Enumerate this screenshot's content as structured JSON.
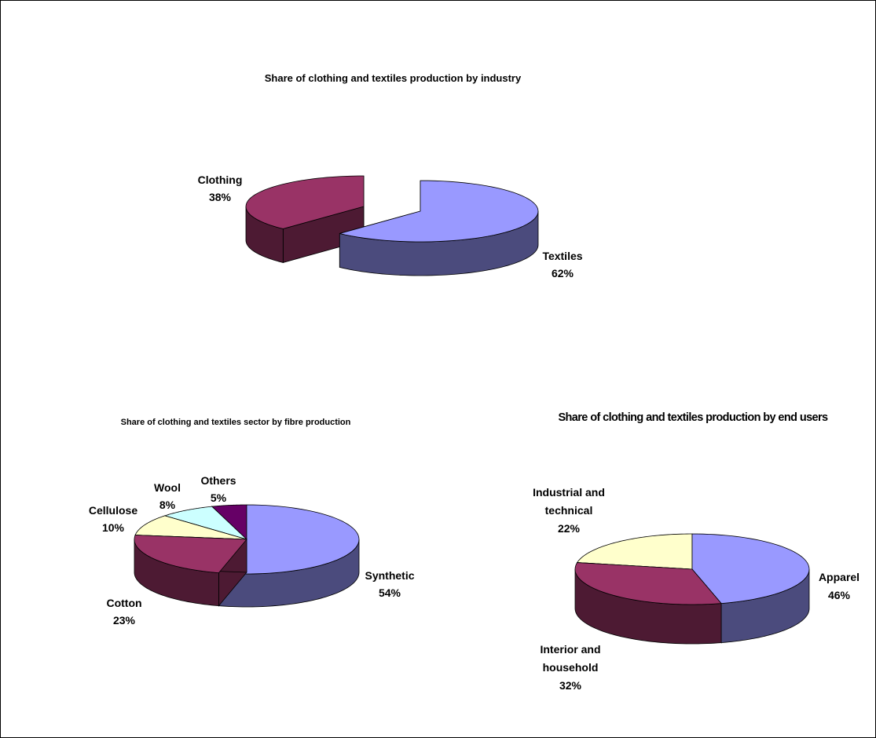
{
  "colors": {
    "blue_top": "#9999FF",
    "blue_side": "#4B4B7D",
    "maroon_top": "#993366",
    "maroon_side": "#4D1A33",
    "cream_top": "#FFFFCC",
    "cream_side": "#7D7D64",
    "cyan_top": "#CCFFFF",
    "cyan_side": "#647D7D",
    "purple_top": "#660066",
    "purple_side": "#330033"
  },
  "chart_data": [
    {
      "type": "pie",
      "title": "Share of clothing and textiles production by industry",
      "categories": [
        "Textiles",
        "Clothing"
      ],
      "values": [
        62,
        38
      ],
      "data_labels": [
        {
          "name": "Textiles",
          "percent": "62%"
        },
        {
          "name": "Clothing",
          "percent": "38%"
        }
      ]
    },
    {
      "type": "pie",
      "title": "Share of clothing and textiles sector by fibre production",
      "categories": [
        "Synthetic",
        "Cotton",
        "Cellulose",
        "Wool",
        "Others"
      ],
      "values": [
        54,
        23,
        10,
        8,
        5
      ],
      "data_labels": [
        {
          "name": "Synthetic",
          "percent": "54%"
        },
        {
          "name": "Cotton",
          "percent": "23%"
        },
        {
          "name": "Cellulose",
          "percent": "10%"
        },
        {
          "name": "Wool",
          "percent": "8%"
        },
        {
          "name": "Others",
          "percent": "5%"
        }
      ]
    },
    {
      "type": "pie",
      "title": "Share of clothing and textiles production by end users",
      "categories": [
        "Apparel",
        "Interior and household",
        "Industrial and technical"
      ],
      "values": [
        46,
        32,
        22
      ],
      "data_labels": [
        {
          "name": "Apparel",
          "percent": "46%"
        },
        {
          "name": "Interior and household",
          "percent": "32%"
        },
        {
          "name": "Industrial and technical",
          "percent": "22%"
        }
      ]
    }
  ]
}
